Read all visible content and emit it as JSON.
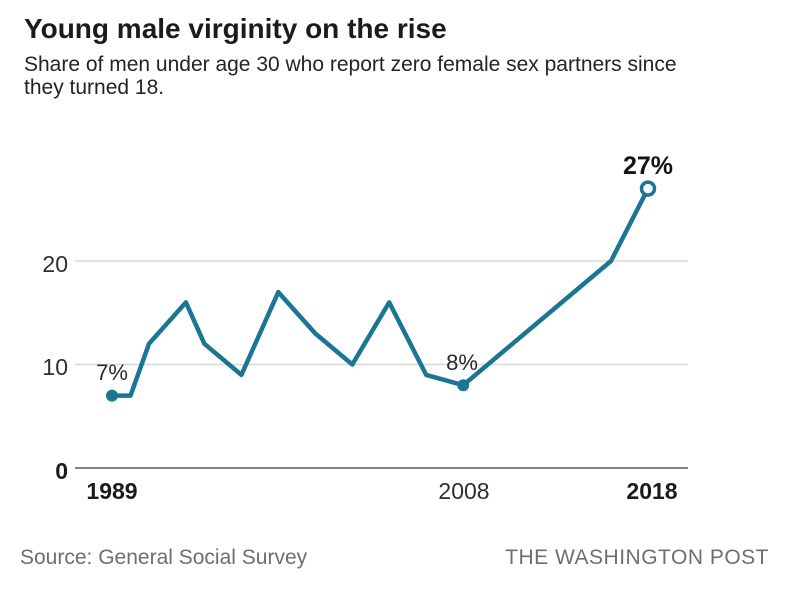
{
  "header": {
    "title": "Young male virginity on the rise",
    "subtitle_lines": [
      "Share of men under age 30 who report zero female sex partners since",
      "they turned 18."
    ]
  },
  "footer": {
    "source": "Source: General Social Survey",
    "brand": "THE WASHINGTON POST"
  },
  "colors": {
    "line": "#1b7693",
    "gridline": "#d8d8d8",
    "axis": "#828282",
    "title_text": "#1b1b1b",
    "muted_text": "#6e6e6e"
  },
  "chart_data": {
    "type": "line",
    "title": "Young male virginity on the rise",
    "subtitle": "Share of men under age 30 who report zero female sex partners since they turned 18.",
    "xlabel": "",
    "ylabel": "",
    "unit": "%",
    "x_range": [
      1989,
      2018
    ],
    "ylim": [
      0,
      29
    ],
    "grid": "horizontal",
    "legend": "none",
    "points": [
      {
        "year": 1989,
        "value": 7
      },
      {
        "year": 1990,
        "value": 7
      },
      {
        "year": 1991,
        "value": 12
      },
      {
        "year": 1993,
        "value": 16
      },
      {
        "year": 1994,
        "value": 12
      },
      {
        "year": 1996,
        "value": 9
      },
      {
        "year": 1998,
        "value": 17
      },
      {
        "year": 2000,
        "value": 13
      },
      {
        "year": 2002,
        "value": 10
      },
      {
        "year": 2004,
        "value": 16
      },
      {
        "year": 2006,
        "value": 9
      },
      {
        "year": 2008,
        "value": 8
      },
      {
        "year": 2016,
        "value": 20
      },
      {
        "year": 2018,
        "value": 27
      }
    ],
    "markers": [
      {
        "year": 1989,
        "value": 7,
        "label": "7%",
        "style": "filled"
      },
      {
        "year": 2008,
        "value": 8,
        "label": "8%",
        "style": "filled"
      },
      {
        "year": 2018,
        "value": 27,
        "label": "27%",
        "style": "open"
      }
    ],
    "y_ticks": [
      {
        "value": 0,
        "label": "0"
      },
      {
        "value": 10,
        "label": "10"
      },
      {
        "value": 20,
        "label": "20"
      }
    ],
    "x_ticks": [
      {
        "year": 1989,
        "label": "1989"
      },
      {
        "year": 2008,
        "label": "2008"
      },
      {
        "year": 2018,
        "label": "2018"
      }
    ]
  }
}
